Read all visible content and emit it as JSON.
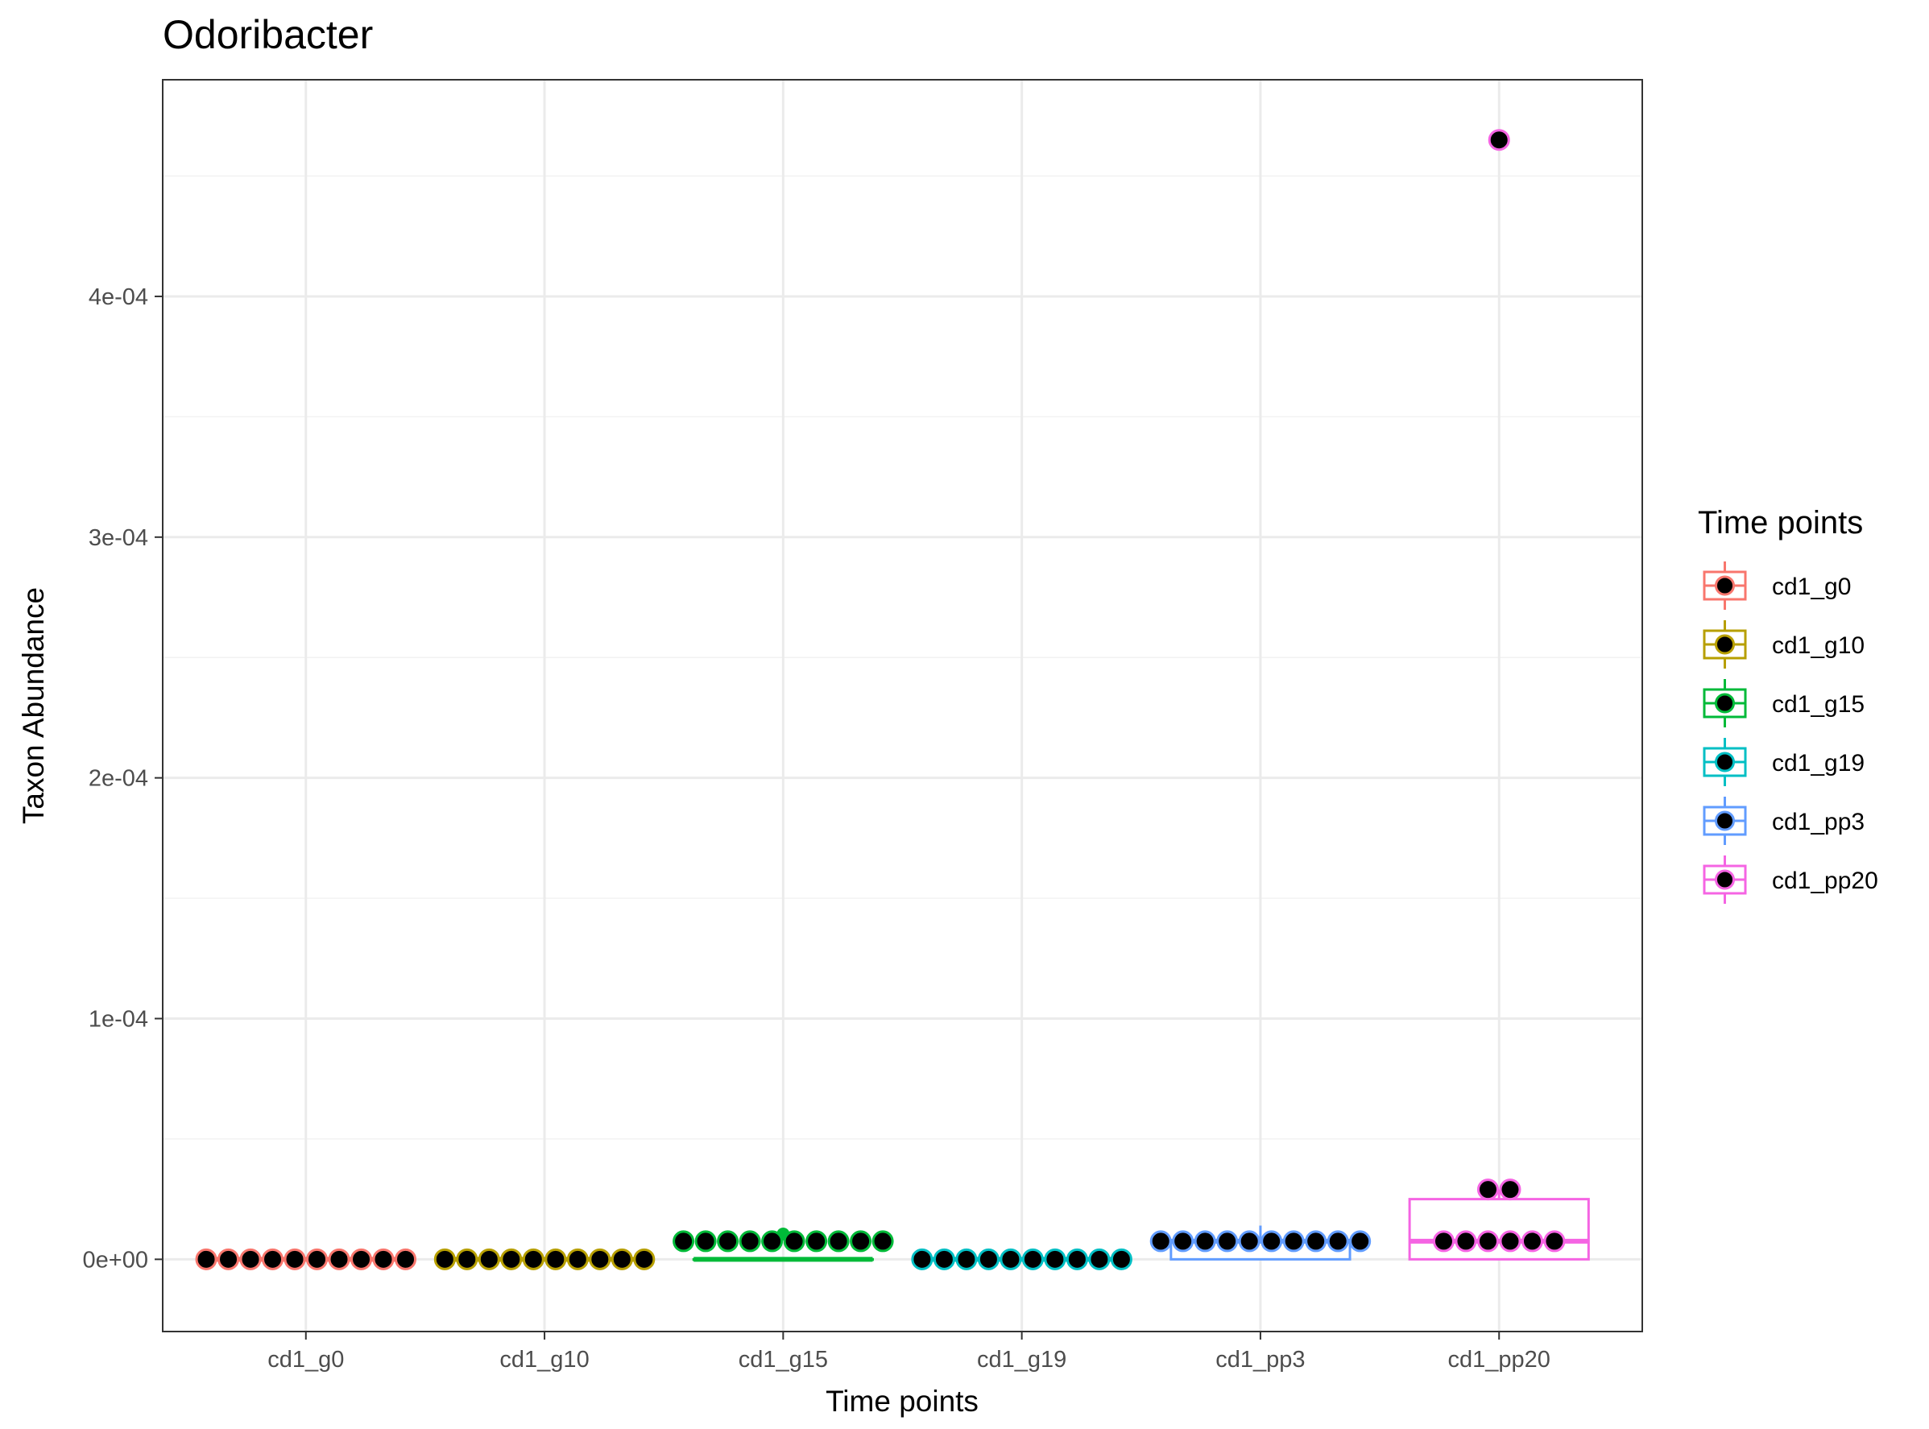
{
  "chart_data": {
    "type": "box",
    "title": "Odoribacter",
    "xlabel": "Time points",
    "ylabel": "Taxon Abundance",
    "ylim": [
      -3e-05,
      0.00049
    ],
    "yticks": [
      0,
      0.0001,
      0.0002,
      0.0003,
      0.0004
    ],
    "ytick_labels": [
      "0e+00",
      "1e-04",
      "2e-04",
      "3e-04",
      "4e-04"
    ],
    "grid": true,
    "legend": {
      "title": "Time points",
      "position": "right"
    },
    "categories": [
      "cd1_g0",
      "cd1_g10",
      "cd1_g15",
      "cd1_g19",
      "cd1_pp3",
      "cd1_pp20"
    ],
    "series": [
      {
        "name": "cd1_g0",
        "color": "#F8766D",
        "box": {
          "q1": 0,
          "median": 0,
          "q3": 0,
          "whisker_low": 0,
          "whisker_high": 0
        },
        "outliers": [],
        "points": [
          0,
          0,
          0,
          0,
          0,
          0,
          0,
          0,
          0,
          0
        ]
      },
      {
        "name": "cd1_g10",
        "color": "#B79F00",
        "box": {
          "q1": 0,
          "median": 0,
          "q3": 0,
          "whisker_low": 0,
          "whisker_high": 0
        },
        "outliers": [],
        "points": [
          0,
          0,
          0,
          0,
          0,
          0,
          0,
          0,
          0,
          0
        ]
      },
      {
        "name": "cd1_g15",
        "color": "#00BA38",
        "box": {
          "q1": 0,
          "median": 0,
          "q3": 0,
          "whisker_low": 0,
          "whisker_high": 0
        },
        "outliers": [
          1.05e-05
        ],
        "points": [
          7.5e-06,
          7.5e-06,
          7.5e-06,
          7.5e-06,
          7.5e-06,
          7.5e-06,
          7.5e-06,
          7.5e-06,
          7.5e-06,
          7.5e-06
        ]
      },
      {
        "name": "cd1_g19",
        "color": "#00BFC4",
        "box": {
          "q1": 0,
          "median": 0,
          "q3": 0,
          "whisker_low": 0,
          "whisker_high": 0
        },
        "outliers": [],
        "points": [
          0,
          0,
          0,
          0,
          0,
          0,
          0,
          0,
          0,
          0
        ]
      },
      {
        "name": "cd1_pp3",
        "color": "#619CFF",
        "box": {
          "q1": 0,
          "median": 7.5e-06,
          "q3": 7.5e-06,
          "whisker_low": 0,
          "whisker_high": 1.4e-05
        },
        "outliers": [],
        "points": [
          7.5e-06,
          7.5e-06,
          7.5e-06,
          7.5e-06,
          7.5e-06,
          7.5e-06,
          7.5e-06,
          7.5e-06,
          7.5e-06,
          7.5e-06
        ]
      },
      {
        "name": "cd1_pp20",
        "color": "#F564E3",
        "box": {
          "q1": 0,
          "median": 7.5e-06,
          "q3": 2.5e-05,
          "whisker_low": 0,
          "whisker_high": 2.9e-05
        },
        "outliers": [
          0.000465
        ],
        "points": [
          7.5e-06,
          7.5e-06,
          7.5e-06,
          7.5e-06,
          7.5e-06,
          7.5e-06,
          2.9e-05,
          2.9e-05,
          0.000465
        ]
      }
    ]
  }
}
